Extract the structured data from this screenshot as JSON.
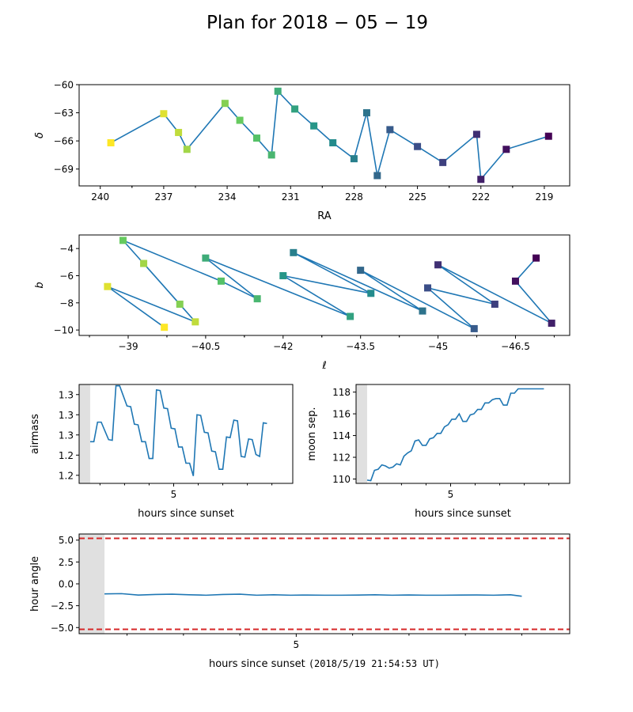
{
  "figure": {
    "title": "Plan for 2018 − 05 − 19"
  },
  "colors": {
    "line": "#1f77b4",
    "limit": "#d62728",
    "shade": "#e0e0e0",
    "axis": "#000000"
  },
  "chart_data": [
    {
      "id": "ra-dec",
      "type": "scatter",
      "xlabel": "RA",
      "ylabel": "δ",
      "x_inverted": true,
      "xlim": [
        241,
        217.8
      ],
      "ylim": [
        -70.8,
        -60
      ],
      "xticks": [
        240,
        237,
        234,
        231,
        228,
        225,
        222,
        219
      ],
      "yticks": [
        -60,
        -63,
        -66,
        -69
      ],
      "markers": "squares colored by sequence (yellow → purple), connected by a line",
      "points": [
        [
          239.5,
          -66.2
        ],
        [
          237.0,
          -63.1
        ],
        [
          236.3,
          -65.1
        ],
        [
          235.9,
          -66.9
        ],
        [
          234.1,
          -62.0
        ],
        [
          233.4,
          -63.8
        ],
        [
          232.6,
          -65.7
        ],
        [
          231.9,
          -67.5
        ],
        [
          231.6,
          -60.7
        ],
        [
          230.8,
          -62.6
        ],
        [
          229.9,
          -64.4
        ],
        [
          229.0,
          -66.2
        ],
        [
          228.0,
          -67.9
        ],
        [
          227.4,
          -63.0
        ],
        [
          226.9,
          -69.7
        ],
        [
          226.3,
          -64.8
        ],
        [
          225.0,
          -66.6
        ],
        [
          223.8,
          -68.3
        ],
        [
          222.2,
          -65.3
        ],
        [
          222.0,
          -70.1
        ],
        [
          220.8,
          -66.9
        ],
        [
          218.8,
          -65.5
        ]
      ]
    },
    {
      "id": "galactic",
      "type": "scatter",
      "xlabel": "ℓ",
      "ylabel": "b",
      "x_inverted": true,
      "xlim": [
        -38.05,
        -47.55
      ],
      "ylim": [
        -10.4,
        -3.0
      ],
      "xticks": [
        -39.0,
        -40.5,
        -42.0,
        -43.5,
        -45.0,
        -46.5
      ],
      "yticks": [
        -4,
        -6,
        -8,
        -10
      ],
      "markers": "squares colored by sequence (yellow → purple), connected by a line",
      "points": [
        [
          -39.7,
          -9.8
        ],
        [
          -38.6,
          -6.8
        ],
        [
          -40.3,
          -9.4
        ],
        [
          -39.3,
          -5.1
        ],
        [
          -40.0,
          -8.1
        ],
        [
          -38.9,
          -3.4
        ],
        [
          -40.8,
          -6.4
        ],
        [
          -41.5,
          -7.7
        ],
        [
          -40.5,
          -4.7
        ],
        [
          -43.3,
          -9.0
        ],
        [
          -42.0,
          -6.0
        ],
        [
          -43.7,
          -7.3
        ],
        [
          -42.2,
          -4.3
        ],
        [
          -44.7,
          -8.6
        ],
        [
          -43.5,
          -5.6
        ],
        [
          -45.7,
          -9.9
        ],
        [
          -44.8,
          -6.9
        ],
        [
          -46.1,
          -8.1
        ],
        [
          -45.0,
          -5.2
        ],
        [
          -47.2,
          -9.5
        ],
        [
          -46.5,
          -6.4
        ],
        [
          -46.9,
          -4.7
        ]
      ]
    },
    {
      "id": "airmass",
      "type": "line",
      "xlabel": "hours since sunset",
      "ylabel": "airmass",
      "xlim": [
        1.15,
        9.85
      ],
      "ylim": [
        1.188,
        1.335
      ],
      "xticks": [
        5
      ],
      "minor_xticks": [
        2,
        3,
        4,
        6,
        7,
        8,
        9
      ],
      "yticks": [
        1.2,
        1.23,
        1.26,
        1.29,
        1.32
      ],
      "shaded_until": 1.6,
      "x": [
        1.6,
        1.75,
        1.9,
        2.05,
        2.2,
        2.35,
        2.5,
        2.65,
        2.8,
        2.95,
        3.1,
        3.25,
        3.4,
        3.55,
        3.7,
        3.85,
        4.0,
        4.15,
        4.3,
        4.45,
        4.6,
        4.75,
        4.9,
        5.05,
        5.2,
        5.35,
        5.5,
        5.65,
        5.8,
        5.95,
        6.1,
        6.25,
        6.4,
        6.55,
        6.7,
        6.85,
        7.0,
        7.15,
        7.3,
        7.45,
        7.6,
        7.75,
        7.9,
        8.05,
        8.2,
        8.35,
        8.5,
        8.65,
        8.8
      ],
      "y": [
        1.25,
        1.25,
        1.279,
        1.279,
        1.266,
        1.253,
        1.252,
        1.333,
        1.333,
        1.318,
        1.303,
        1.302,
        1.276,
        1.275,
        1.25,
        1.25,
        1.225,
        1.225,
        1.327,
        1.326,
        1.3,
        1.299,
        1.27,
        1.269,
        1.242,
        1.242,
        1.218,
        1.218,
        1.199,
        1.29,
        1.289,
        1.264,
        1.263,
        1.236,
        1.235,
        1.209,
        1.209,
        1.257,
        1.256,
        1.282,
        1.281,
        1.228,
        1.227,
        1.254,
        1.253,
        1.231,
        1.228,
        1.278,
        1.277
      ]
    },
    {
      "id": "moon",
      "type": "line",
      "xlabel": "hours since sunset",
      "ylabel": "moon sep.",
      "xlim": [
        1.15,
        9.85
      ],
      "ylim": [
        109.6,
        118.7
      ],
      "xticks": [
        5
      ],
      "minor_xticks": [
        2,
        3,
        4,
        6,
        7,
        8,
        9
      ],
      "yticks": [
        110,
        112,
        114,
        116,
        118
      ],
      "shaded_until": 1.6,
      "x": [
        1.6,
        1.75,
        1.9,
        2.05,
        2.2,
        2.35,
        2.5,
        2.65,
        2.8,
        2.95,
        3.1,
        3.25,
        3.4,
        3.55,
        3.7,
        3.85,
        4.0,
        4.15,
        4.3,
        4.45,
        4.6,
        4.75,
        4.9,
        5.05,
        5.2,
        5.35,
        5.5,
        5.65,
        5.8,
        5.95,
        6.1,
        6.25,
        6.4,
        6.55,
        6.7,
        6.85,
        7.0,
        7.15,
        7.3,
        7.45,
        7.6,
        7.75,
        7.9,
        8.05,
        8.2,
        8.35,
        8.5,
        8.65,
        8.8
      ],
      "y": [
        109.9,
        109.85,
        110.8,
        110.9,
        111.3,
        111.2,
        111.0,
        111.1,
        111.4,
        111.3,
        112.1,
        112.4,
        112.6,
        113.5,
        113.6,
        113.1,
        113.1,
        113.7,
        113.8,
        114.2,
        114.2,
        114.8,
        115.0,
        115.5,
        115.5,
        116.0,
        115.3,
        115.3,
        115.9,
        116.0,
        116.4,
        116.4,
        117.0,
        117.0,
        117.3,
        117.4,
        117.4,
        116.8,
        116.8,
        117.9,
        117.9,
        118.3,
        118.3,
        118.3,
        118.3,
        118.3,
        118.3,
        118.3,
        118.3
      ]
    },
    {
      "id": "hour-angle",
      "type": "line",
      "xlabel": "hours since sunset",
      "xlabel_suffix": "(2018/5/19 21:54:53 UT)",
      "ylabel": "hour angle",
      "xlim": [
        1.15,
        9.85
      ],
      "ylim": [
        -5.7,
        5.7
      ],
      "xticks": [
        5
      ],
      "minor_xticks": [
        2,
        3,
        4,
        6,
        7,
        8,
        9
      ],
      "yticks": [
        5.0,
        2.5,
        0.0,
        -2.5,
        -5.0
      ],
      "ytick_labels": [
        "5.0",
        "2.5",
        "0.0",
        "−2.5",
        "−5.0"
      ],
      "shaded_until": 1.6,
      "limits": [
        5.2,
        -5.2
      ],
      "x": [
        1.6,
        1.9,
        2.2,
        2.5,
        2.8,
        3.1,
        3.4,
        3.7,
        4.0,
        4.3,
        4.6,
        4.9,
        5.2,
        5.5,
        5.8,
        6.1,
        6.4,
        6.7,
        7.0,
        7.3,
        7.6,
        7.9,
        8.2,
        8.5,
        8.8,
        9.0
      ],
      "y": [
        -1.15,
        -1.12,
        -1.28,
        -1.22,
        -1.18,
        -1.25,
        -1.3,
        -1.22,
        -1.18,
        -1.3,
        -1.25,
        -1.3,
        -1.28,
        -1.3,
        -1.3,
        -1.28,
        -1.25,
        -1.3,
        -1.27,
        -1.3,
        -1.3,
        -1.28,
        -1.27,
        -1.3,
        -1.25,
        -1.42
      ]
    }
  ]
}
